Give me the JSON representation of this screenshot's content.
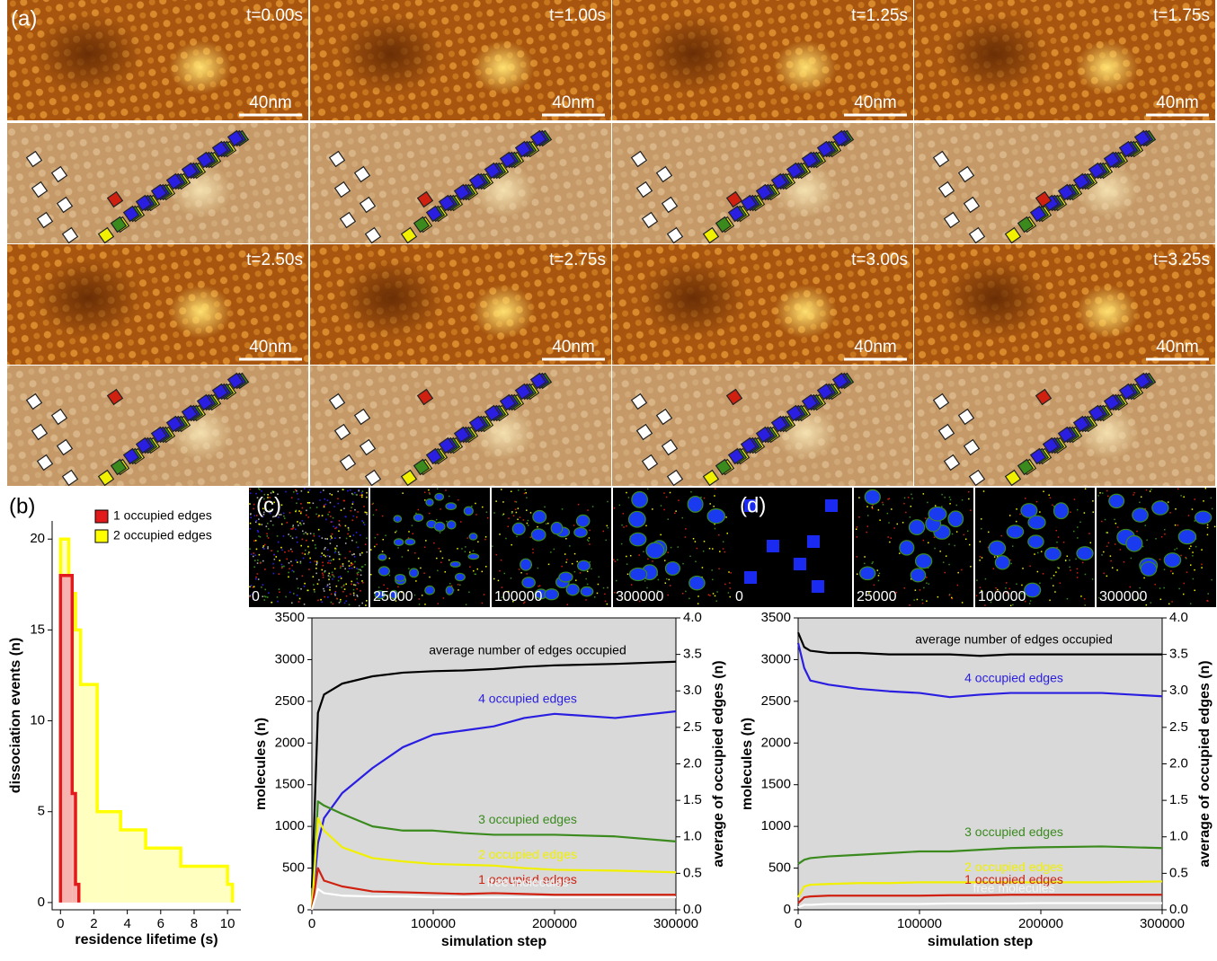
{
  "panels": {
    "a": {
      "label": "(a)",
      "frames": [
        {
          "time": "t=0.00s",
          "scale": "40nm"
        },
        {
          "time": "t=1.00s",
          "scale": "40nm"
        },
        {
          "time": "t=1.25s",
          "scale": "40nm"
        },
        {
          "time": "t=1.75s",
          "scale": "40nm"
        },
        {
          "time": "t=2.50s",
          "scale": "40nm"
        },
        {
          "time": "t=2.75s",
          "scale": "40nm"
        },
        {
          "time": "t=3.00s",
          "scale": "40nm"
        },
        {
          "time": "t=3.25s",
          "scale": "40nm"
        }
      ]
    },
    "c": {
      "label": "(c)",
      "steps": [
        "0",
        "25000",
        "100000",
        "300000"
      ]
    },
    "d": {
      "label": "(d)",
      "steps": [
        "0",
        "25000",
        "100000",
        "300000"
      ]
    }
  },
  "chart_data": [
    {
      "type": "histogram",
      "panel_label": "(b)",
      "x_label": "residence lifetime (s)",
      "y_label": "dissociation events (n)",
      "xlim": [
        -0.5,
        10.8
      ],
      "ylim": [
        -0.4,
        21
      ],
      "xticks": [
        0,
        2,
        4,
        6,
        8,
        10
      ],
      "yticks": [
        0,
        5,
        10,
        15,
        20
      ],
      "legend": "top-right",
      "series": [
        {
          "name": "1 occupied edges",
          "color": "#e31a1c",
          "fill": "#f7b3b0",
          "bins": [
            0,
            0.7,
            0.9,
            1.1
          ],
          "values": [
            18,
            6,
            1
          ]
        },
        {
          "name": "2 occupied edges",
          "color": "#ffff00",
          "fill": "#ffffc0",
          "bins": [
            0,
            0.5,
            0.9,
            1.2,
            2.2,
            3.6,
            5.1,
            7.2,
            10.0,
            10.3
          ],
          "values": [
            20,
            17,
            15,
            12,
            5,
            4,
            3,
            2,
            1
          ]
        }
      ]
    },
    {
      "type": "line",
      "x_label": "simulation step",
      "y_label": "molecules (n)",
      "y2_label": "average of occupied edges (n)",
      "xlim": [
        0,
        300000
      ],
      "xticks": [
        0,
        100000,
        200000,
        300000
      ],
      "ylim": [
        0,
        3500
      ],
      "yticks": [
        0,
        500,
        1000,
        1500,
        2000,
        2500,
        3000,
        3500
      ],
      "y2lim": [
        0,
        4
      ],
      "y2ticks": [
        {
          "value": 0,
          "label": "0.0"
        },
        {
          "value": 0.5,
          "label": "0.5"
        },
        {
          "value": 1,
          "label": "1.0"
        },
        {
          "value": 1.5,
          "label": "1.5"
        },
        {
          "value": 2,
          "label": "2.0"
        },
        {
          "value": 2.5,
          "label": "2.5"
        },
        {
          "value": 3,
          "label": "3.0"
        },
        {
          "value": 3.5,
          "label": "3.5"
        },
        {
          "value": 4,
          "label": "4.0"
        }
      ],
      "x": [
        0,
        5000,
        10000,
        25000,
        50000,
        75000,
        100000,
        125000,
        150000,
        175000,
        200000,
        250000,
        300000
      ],
      "series": [
        {
          "name": "average number of edges occupied",
          "color": "#000000",
          "axis": "y2",
          "values": [
            0.3,
            2.7,
            2.95,
            3.1,
            3.2,
            3.25,
            3.27,
            3.28,
            3.3,
            3.33,
            3.35,
            3.37,
            3.4
          ]
        },
        {
          "name": "4 occupied edges",
          "color": "#2a1ee0",
          "values": [
            0,
            800,
            1100,
            1400,
            1700,
            1950,
            2100,
            2150,
            2200,
            2300,
            2350,
            2300,
            2380
          ]
        },
        {
          "name": "3 occupied edges",
          "color": "#3a8a1e",
          "values": [
            0,
            1300,
            1250,
            1150,
            1000,
            950,
            950,
            920,
            900,
            900,
            900,
            880,
            820
          ]
        },
        {
          "name": "2 occupied edges",
          "color": "#f0f000",
          "values": [
            0,
            1100,
            950,
            750,
            620,
            580,
            550,
            540,
            530,
            500,
            480,
            470,
            450
          ]
        },
        {
          "name": "1 occupied edges",
          "color": "#d02010",
          "values": [
            0,
            500,
            350,
            280,
            220,
            210,
            200,
            190,
            200,
            190,
            180,
            180,
            180
          ]
        },
        {
          "name": "free molecules",
          "color": "#ffffff",
          "values": [
            0,
            250,
            200,
            170,
            160,
            160,
            150,
            150,
            150,
            150,
            150,
            150,
            150
          ]
        }
      ]
    },
    {
      "type": "line",
      "x_label": "simulation step",
      "y_label": "molecules (n)",
      "y2_label": "average of occupied edges (n)",
      "xlim": [
        0,
        300000
      ],
      "xticks": [
        0,
        100000,
        200000,
        300000
      ],
      "ylim": [
        0,
        3500
      ],
      "yticks": [
        0,
        500,
        1000,
        1500,
        2000,
        2500,
        3000,
        3500
      ],
      "y2lim": [
        0,
        4
      ],
      "y2ticks": [
        {
          "value": 0,
          "label": "0.0"
        },
        {
          "value": 0.5,
          "label": "0.5"
        },
        {
          "value": 1,
          "label": "1.0"
        },
        {
          "value": 1.5,
          "label": "1.5"
        },
        {
          "value": 2,
          "label": "2.0"
        },
        {
          "value": 2.5,
          "label": "2.5"
        },
        {
          "value": 3,
          "label": "3.0"
        },
        {
          "value": 3.5,
          "label": "3.5"
        },
        {
          "value": 4,
          "label": "4.0"
        }
      ],
      "x": [
        0,
        5000,
        10000,
        25000,
        50000,
        75000,
        100000,
        125000,
        150000,
        175000,
        200000,
        250000,
        300000
      ],
      "series": [
        {
          "name": "average number of edges occupied",
          "color": "#000000",
          "axis": "y2",
          "values": [
            3.8,
            3.6,
            3.55,
            3.52,
            3.52,
            3.5,
            3.5,
            3.5,
            3.48,
            3.5,
            3.5,
            3.5,
            3.5
          ]
        },
        {
          "name": "4 occupied edges",
          "color": "#2a1ee0",
          "values": [
            3200,
            2900,
            2750,
            2700,
            2650,
            2620,
            2600,
            2550,
            2580,
            2600,
            2600,
            2600,
            2560
          ]
        },
        {
          "name": "3 occupied edges",
          "color": "#3a8a1e",
          "values": [
            550,
            600,
            620,
            640,
            660,
            680,
            700,
            700,
            720,
            740,
            750,
            760,
            740
          ]
        },
        {
          "name": "2 occupied edges",
          "color": "#f0f000",
          "values": [
            150,
            280,
            300,
            310,
            320,
            320,
            330,
            330,
            330,
            330,
            330,
            330,
            340
          ]
        },
        {
          "name": "1 occupied edges",
          "color": "#d02010",
          "values": [
            80,
            150,
            160,
            170,
            170,
            170,
            170,
            175,
            175,
            180,
            180,
            180,
            180
          ]
        },
        {
          "name": "free molecules",
          "color": "#ffffff",
          "values": [
            30,
            60,
            60,
            70,
            70,
            70,
            70,
            75,
            75,
            75,
            80,
            80,
            80
          ]
        }
      ]
    }
  ]
}
